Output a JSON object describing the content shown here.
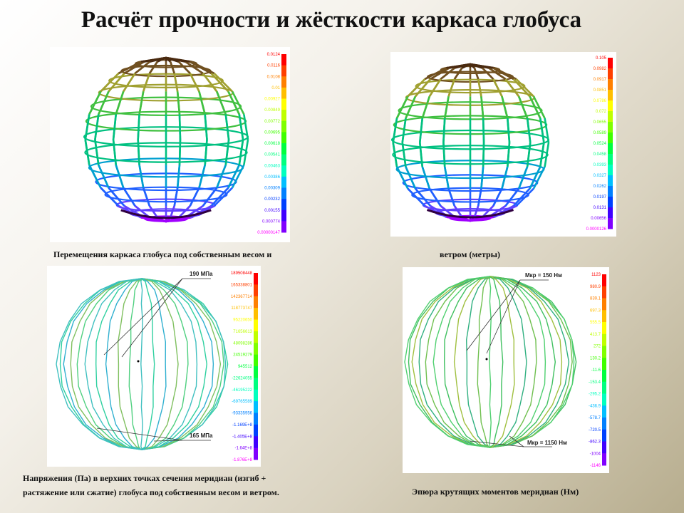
{
  "title": "Расчёт прочности и жёсткости каркаса глобуса",
  "captions": {
    "top_left": "Перемещения каркаса  глобуса под собственным весом    и",
    "top_right": "ветром (метры)",
    "bottom_left_line1": "Напряжения (Па) в верхних точках сечения меридиан (изгиб +",
    "bottom_left_line2": "растяжение или сжатие) глобуса  под собственным весом и ветром.",
    "bottom_right": "Эпюра крутящих моментов меридиан (Нм)"
  },
  "panels": {
    "p1": {
      "legend": [
        "0.0124",
        "0.0116",
        "0.0108",
        "0.01",
        "0.00927",
        "0.00849",
        "0.00772",
        "0.00695",
        "0.00618",
        "0.00541",
        "0.00463",
        "0.00386",
        "0.00309",
        "0.00232",
        "0.00155",
        "0.000774",
        "0.00000147"
      ]
    },
    "p2": {
      "legend": [
        "0.105",
        "0.0982",
        "0.0917",
        "0.0851",
        "0.0786",
        "0.072",
        "0.0655",
        "0.0589",
        "0.0524",
        "0.0458",
        "0.0393",
        "0.0327",
        "0.0262",
        "0.0197",
        "0.0131",
        "0.00656",
        "0.0000126"
      ]
    },
    "p3": {
      "legend": [
        "189508448",
        "165338801",
        "142367714",
        "118773747",
        "95220650",
        "71656613",
        "48098286",
        "24519279",
        "945512",
        "-22624055",
        "-46195222",
        "-69765589",
        "-93335956",
        "-1.169E+8",
        "-1.405E+8",
        "-1.64E+8",
        "-1.876E+8"
      ],
      "callout_top": "190 МПа",
      "callout_bottom": "165 МПа"
    },
    "p4": {
      "legend": [
        "1123",
        "980.9",
        "839.1",
        "697.3",
        "555.5",
        "413.7",
        "272",
        "130.2",
        "-11.6",
        "-153.4",
        "-295.2",
        "-436.9",
        "-578.7",
        "-720.5",
        "-862.3",
        "-1004",
        "-1146"
      ],
      "callout_top": "Мкр = 150 Нм",
      "callout_bottom": "Мкр = 1150 Нм"
    }
  },
  "colors": {
    "scale": [
      "#ff0000",
      "#ff4000",
      "#ff8000",
      "#ffbf00",
      "#ffff00",
      "#bfff00",
      "#80ff00",
      "#40ff00",
      "#00ff40",
      "#00ff80",
      "#00ffbf",
      "#00bfff",
      "#0080ff",
      "#0040ff",
      "#4000ff",
      "#8000ff",
      "#ff00ff"
    ]
  }
}
